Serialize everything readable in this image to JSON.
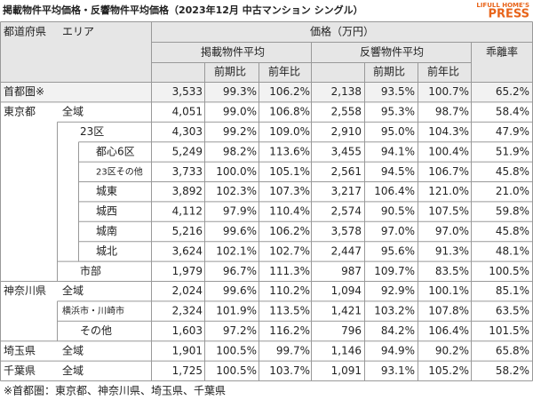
{
  "header": {
    "title": "掲載物件平均価格・反響物件平均価格（2023年12月 中古マンション シングル）",
    "logo_top": "LIFULL HOME'S",
    "logo_main": "PRESS"
  },
  "table": {
    "head": {
      "area_1": "都道府県",
      "area_2": "エリア",
      "price": "価格（万円）",
      "listed": "掲載物件平均",
      "inquired": "反響物件平均",
      "gap": "乖離率",
      "sub": [
        "前期比",
        "前年比",
        "前期比",
        "前年比"
      ]
    },
    "rows": [
      {
        "labels": [
          "首都圏※"
        ],
        "cells": [
          "3,533",
          "99.3%",
          "106.2%",
          "2,138",
          "93.5%",
          "100.7%",
          "65.2%"
        ]
      },
      {
        "labels": [
          "東京都",
          "全域"
        ],
        "cells": [
          "4,051",
          "99.0%",
          "106.8%",
          "2,558",
          "95.3%",
          "98.7%",
          "58.4%"
        ]
      },
      {
        "labels": [
          "23区"
        ],
        "cells": [
          "4,303",
          "99.2%",
          "109.0%",
          "2,910",
          "95.0%",
          "104.3%",
          "47.9%"
        ]
      },
      {
        "labels": [
          "都心6区"
        ],
        "cells": [
          "5,249",
          "98.2%",
          "113.6%",
          "3,455",
          "94.1%",
          "100.4%",
          "51.9%"
        ]
      },
      {
        "labels": [
          "23区その他"
        ],
        "cells": [
          "3,733",
          "100.0%",
          "105.1%",
          "2,561",
          "94.5%",
          "106.7%",
          "45.8%"
        ]
      },
      {
        "labels": [
          "城東"
        ],
        "cells": [
          "3,892",
          "102.3%",
          "107.3%",
          "3,217",
          "106.4%",
          "121.0%",
          "21.0%"
        ]
      },
      {
        "labels": [
          "城西"
        ],
        "cells": [
          "4,112",
          "97.9%",
          "110.4%",
          "2,574",
          "90.5%",
          "107.5%",
          "59.8%"
        ]
      },
      {
        "labels": [
          "城南"
        ],
        "cells": [
          "5,216",
          "99.6%",
          "106.2%",
          "3,578",
          "97.0%",
          "97.0%",
          "45.8%"
        ]
      },
      {
        "labels": [
          "城北"
        ],
        "cells": [
          "3,624",
          "102.1%",
          "102.7%",
          "2,447",
          "95.6%",
          "91.3%",
          "48.1%"
        ]
      },
      {
        "labels": [
          "市部"
        ],
        "cells": [
          "1,979",
          "96.7%",
          "111.3%",
          "987",
          "109.7%",
          "83.5%",
          "100.5%"
        ]
      },
      {
        "labels": [
          "神奈川県",
          "全域"
        ],
        "cells": [
          "2,024",
          "99.6%",
          "110.2%",
          "1,094",
          "92.9%",
          "100.1%",
          "85.1%"
        ]
      },
      {
        "labels": [
          "横浜市・川崎市"
        ],
        "cells": [
          "2,324",
          "101.9%",
          "113.5%",
          "1,421",
          "103.2%",
          "107.8%",
          "63.5%"
        ]
      },
      {
        "labels": [
          "その他"
        ],
        "cells": [
          "1,603",
          "97.2%",
          "116.2%",
          "796",
          "84.2%",
          "106.4%",
          "101.5%"
        ]
      },
      {
        "labels": [
          "埼玉県",
          "全域"
        ],
        "cells": [
          "1,901",
          "100.5%",
          "99.7%",
          "1,146",
          "94.9%",
          "90.2%",
          "65.8%"
        ]
      },
      {
        "labels": [
          "千葉県",
          "全域"
        ],
        "cells": [
          "1,725",
          "100.5%",
          "103.7%",
          "1,091",
          "93.1%",
          "105.2%",
          "58.2%"
        ]
      }
    ]
  },
  "footnote": "※首都圏：東京都、神奈川県、埼玉県、千葉県"
}
